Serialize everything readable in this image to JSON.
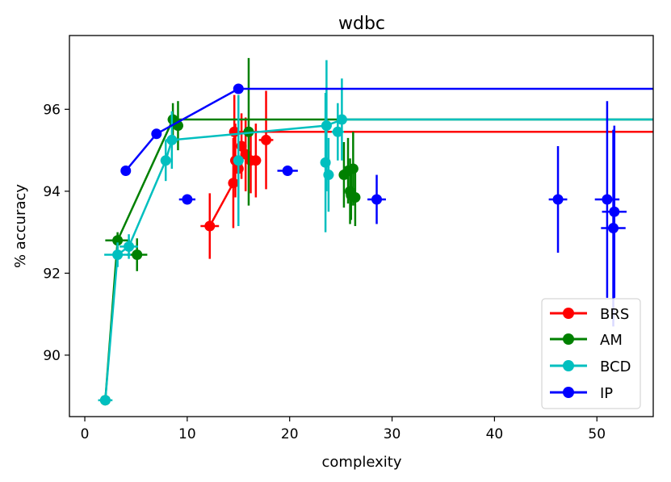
{
  "chart_data": {
    "type": "scatter",
    "title": "wdbc",
    "xlabel": "complexity",
    "ylabel": "% accuracy",
    "xlim": [
      -1.5,
      55.5
    ],
    "ylim": [
      88.5,
      97.8
    ],
    "xticks": [
      0,
      10,
      20,
      30,
      40,
      50
    ],
    "yticks": [
      90,
      92,
      94,
      96
    ],
    "xtick_labels": [
      "0",
      "10",
      "20",
      "30",
      "40",
      "50"
    ],
    "ytick_labels": [
      "90",
      "92",
      "94",
      "96"
    ],
    "legend": {
      "placement": "lower-right",
      "entries": [
        "BRS",
        "AM",
        "BCD",
        "IP"
      ]
    },
    "series": [
      {
        "name": "BRS",
        "color": "#ff0000",
        "frontier": [
          [
            12.2,
            93.15
          ],
          [
            14.5,
            94.2
          ],
          [
            14.6,
            95.45
          ],
          [
            55.5,
            95.45
          ]
        ],
        "points": [
          {
            "x": 12.2,
            "y": 93.15,
            "xerr": 0.9,
            "yerr": 0.8
          },
          {
            "x": 14.5,
            "y": 94.2,
            "xerr": 0.5,
            "yerr": 1.1
          },
          {
            "x": 14.6,
            "y": 95.45,
            "xerr": 0.5,
            "yerr": 0.9
          },
          {
            "x": 14.7,
            "y": 94.75,
            "xerr": 0.5,
            "yerr": 0.9
          },
          {
            "x": 15.0,
            "y": 94.55,
            "xerr": 0.5,
            "yerr": 0.7
          },
          {
            "x": 15.3,
            "y": 95.1,
            "xerr": 0.5,
            "yerr": 0.8
          },
          {
            "x": 15.7,
            "y": 94.9,
            "xerr": 0.5,
            "yerr": 0.9
          },
          {
            "x": 16.2,
            "y": 94.75,
            "xerr": 0.5,
            "yerr": 0.8
          },
          {
            "x": 16.7,
            "y": 94.75,
            "xerr": 0.5,
            "yerr": 0.9
          },
          {
            "x": 17.7,
            "y": 95.25,
            "xerr": 0.7,
            "yerr": 1.2
          }
        ]
      },
      {
        "name": "AM",
        "color": "#008000",
        "frontier": [
          [
            2.0,
            88.9
          ],
          [
            3.2,
            92.8
          ],
          [
            8.6,
            95.75
          ],
          [
            55.5,
            95.75
          ]
        ],
        "points": [
          {
            "x": 2.0,
            "y": 88.9,
            "xerr": 0.5,
            "yerr": 0.0
          },
          {
            "x": 3.2,
            "y": 92.8,
            "xerr": 1.2,
            "yerr": 0.2
          },
          {
            "x": 5.1,
            "y": 92.45,
            "xerr": 1.0,
            "yerr": 0.4
          },
          {
            "x": 8.6,
            "y": 95.75,
            "xerr": 0.5,
            "yerr": 0.4
          },
          {
            "x": 9.1,
            "y": 95.6,
            "xerr": 0.5,
            "yerr": 0.6
          },
          {
            "x": 16.0,
            "y": 95.45,
            "xerr": 0.5,
            "yerr": 1.8
          },
          {
            "x": 25.3,
            "y": 94.4,
            "xerr": 0.5,
            "yerr": 0.8
          },
          {
            "x": 25.7,
            "y": 94.5,
            "xerr": 0.5,
            "yerr": 0.8
          },
          {
            "x": 25.9,
            "y": 94.0,
            "xerr": 0.5,
            "yerr": 0.8
          },
          {
            "x": 26.0,
            "y": 93.9,
            "xerr": 0.5,
            "yerr": 0.6
          },
          {
            "x": 26.2,
            "y": 94.55,
            "xerr": 0.5,
            "yerr": 0.9
          },
          {
            "x": 26.4,
            "y": 93.85,
            "xerr": 0.5,
            "yerr": 0.7
          }
        ]
      },
      {
        "name": "BCD",
        "color": "#00bfbf",
        "frontier": [
          [
            2.0,
            88.9
          ],
          [
            3.2,
            92.45
          ],
          [
            4.3,
            92.65
          ],
          [
            7.9,
            94.75
          ],
          [
            8.5,
            95.25
          ],
          [
            15.0,
            95.4
          ],
          [
            23.5,
            95.6
          ],
          [
            25.2,
            95.75
          ],
          [
            55.5,
            95.75
          ]
        ],
        "points": [
          {
            "x": 2.0,
            "y": 88.9,
            "xerr": 0.7,
            "yerr": 0.0
          },
          {
            "x": 3.2,
            "y": 92.45,
            "xerr": 1.3,
            "yerr": 0.3
          },
          {
            "x": 4.3,
            "y": 92.65,
            "xerr": 0.9,
            "yerr": 0.3
          },
          {
            "x": 7.9,
            "y": 94.75,
            "xerr": 0.5,
            "yerr": 0.5
          },
          {
            "x": 8.5,
            "y": 95.25,
            "xerr": 0.6,
            "yerr": 0.7
          },
          {
            "x": 15.0,
            "y": 94.75,
            "xerr": 0.5,
            "yerr": 1.6
          },
          {
            "x": 23.5,
            "y": 94.7,
            "xerr": 0.5,
            "yerr": 1.7
          },
          {
            "x": 23.6,
            "y": 95.6,
            "xerr": 0.5,
            "yerr": 1.6
          },
          {
            "x": 23.8,
            "y": 94.4,
            "xerr": 0.5,
            "yerr": 0.9
          },
          {
            "x": 24.7,
            "y": 95.45,
            "xerr": 0.6,
            "yerr": 0.7
          },
          {
            "x": 25.1,
            "y": 95.75,
            "xerr": 0.5,
            "yerr": 1.0
          }
        ]
      },
      {
        "name": "IP",
        "color": "#0000ff",
        "frontier": [
          [
            4.0,
            94.5
          ],
          [
            7.0,
            95.4
          ],
          [
            15.0,
            96.5
          ],
          [
            55.5,
            96.5
          ]
        ],
        "points": [
          {
            "x": 4.0,
            "y": 94.5,
            "xerr": 0.0,
            "yerr": 0.0
          },
          {
            "x": 7.0,
            "y": 95.4,
            "xerr": 0.0,
            "yerr": 0.0
          },
          {
            "x": 10.0,
            "y": 93.8,
            "xerr": 0.8,
            "yerr": 0.0
          },
          {
            "x": 15.0,
            "y": 96.5,
            "xerr": 0.5,
            "yerr": 0.0
          },
          {
            "x": 19.8,
            "y": 94.5,
            "xerr": 1.0,
            "yerr": 0.0
          },
          {
            "x": 28.5,
            "y": 93.8,
            "xerr": 0.9,
            "yerr": 0.6
          },
          {
            "x": 46.2,
            "y": 93.8,
            "xerr": 0.9,
            "yerr": 1.3
          },
          {
            "x": 51.0,
            "y": 93.8,
            "xerr": 1.2,
            "yerr": 2.4
          },
          {
            "x": 51.6,
            "y": 93.1,
            "xerr": 1.2,
            "yerr": 2.4
          },
          {
            "x": 51.7,
            "y": 93.5,
            "xerr": 1.2,
            "yerr": 2.1
          }
        ]
      }
    ]
  }
}
